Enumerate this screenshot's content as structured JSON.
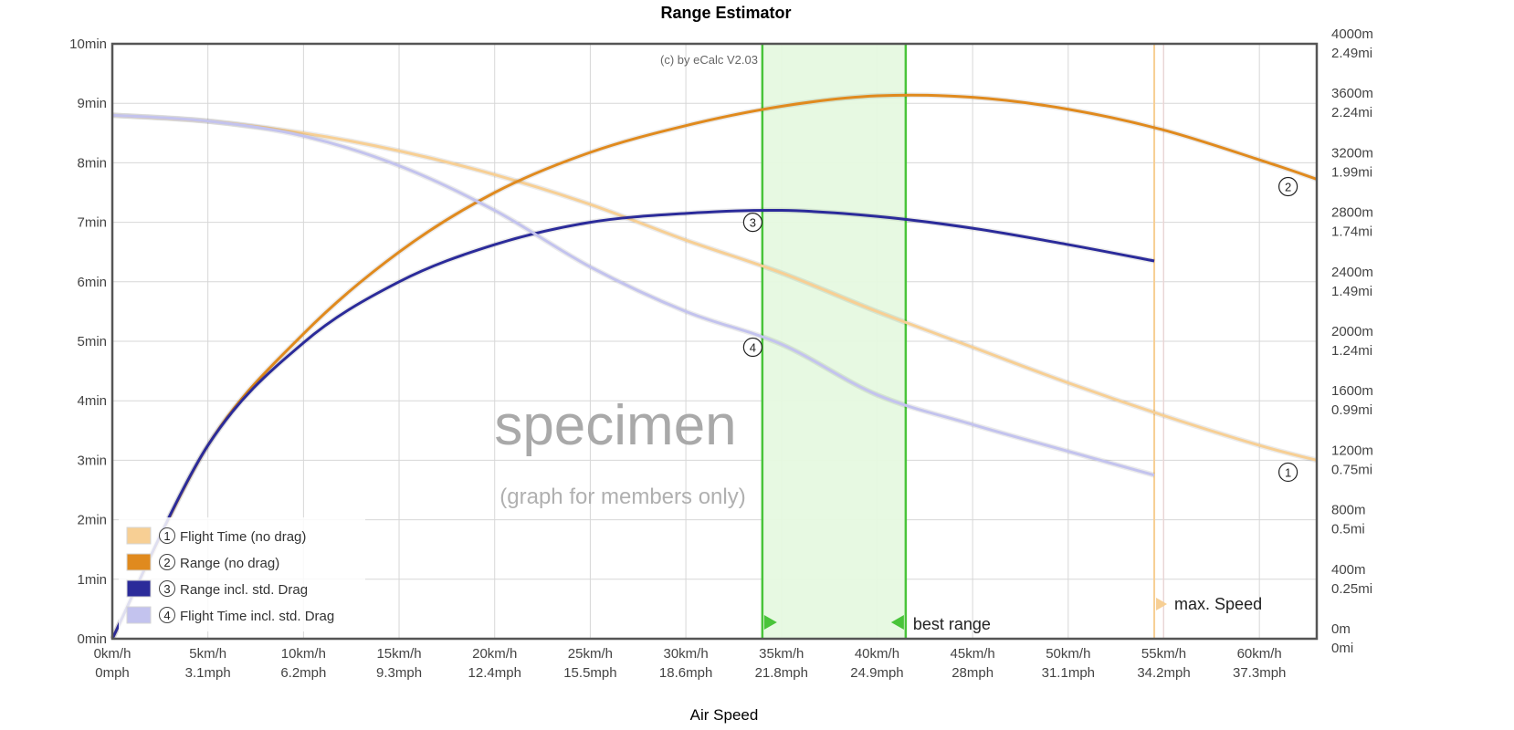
{
  "chart_data": {
    "type": "line",
    "title": "Range Estimator",
    "xlabel": "Air Speed",
    "credit": "(c) by eCalc  V2.03",
    "watermark": "specimen",
    "watermark_sub": "(graph for members only)",
    "x_ticks": [
      {
        "kmh": 0,
        "top": "0km/h",
        "bottom": "0mph"
      },
      {
        "kmh": 5,
        "top": "5km/h",
        "bottom": "3.1mph"
      },
      {
        "kmh": 10,
        "top": "10km/h",
        "bottom": "6.2mph"
      },
      {
        "kmh": 15,
        "top": "15km/h",
        "bottom": "9.3mph"
      },
      {
        "kmh": 20,
        "top": "20km/h",
        "bottom": "12.4mph"
      },
      {
        "kmh": 25,
        "top": "25km/h",
        "bottom": "15.5mph"
      },
      {
        "kmh": 30,
        "top": "30km/h",
        "bottom": "18.6mph"
      },
      {
        "kmh": 35,
        "top": "35km/h",
        "bottom": "21.8mph"
      },
      {
        "kmh": 40,
        "top": "40km/h",
        "bottom": "24.9mph"
      },
      {
        "kmh": 45,
        "top": "45km/h",
        "bottom": "28mph"
      },
      {
        "kmh": 50,
        "top": "50km/h",
        "bottom": "31.1mph"
      },
      {
        "kmh": 55,
        "top": "55km/h",
        "bottom": "34.2mph"
      },
      {
        "kmh": 60,
        "top": "60km/h",
        "bottom": "37.3mph"
      }
    ],
    "xlim": [
      0,
      63
    ],
    "y_left": {
      "ylim": [
        0,
        10
      ],
      "ticks": [
        "0min",
        "1min",
        "2min",
        "3min",
        "4min",
        "5min",
        "6min",
        "7min",
        "8min",
        "9min",
        "10min"
      ]
    },
    "y_right": {
      "ylim": [
        0,
        4000
      ],
      "ticks": [
        {
          "v": 0,
          "a": "0m",
          "b": "0mi"
        },
        {
          "v": 400,
          "a": "400m",
          "b": "0.25mi"
        },
        {
          "v": 800,
          "a": "800m",
          "b": "0.5mi"
        },
        {
          "v": 1200,
          "a": "1200m",
          "b": "0.75mi"
        },
        {
          "v": 1600,
          "a": "1600m",
          "b": "0.99mi"
        },
        {
          "v": 2000,
          "a": "2000m",
          "b": "1.24mi"
        },
        {
          "v": 2400,
          "a": "2400m",
          "b": "1.49mi"
        },
        {
          "v": 2800,
          "a": "2800m",
          "b": "1.74mi"
        },
        {
          "v": 3200,
          "a": "3200m",
          "b": "1.99mi"
        },
        {
          "v": 3600,
          "a": "3600m",
          "b": "2.24mi"
        },
        {
          "v": 4000,
          "a": "4000m",
          "b": "2.49mi"
        }
      ]
    },
    "series": [
      {
        "marker": "1",
        "name": "Flight Time (no drag)",
        "axis": "left",
        "color": "#f7cf94",
        "x": [
          0,
          5,
          10,
          15,
          20,
          25,
          30,
          35,
          40,
          45,
          50,
          55,
          60,
          63
        ],
        "y": [
          8.8,
          8.7,
          8.5,
          8.2,
          7.8,
          7.3,
          6.7,
          6.15,
          5.5,
          4.9,
          4.3,
          3.75,
          3.25,
          3.0
        ]
      },
      {
        "marker": "2",
        "name": "Range (no drag)",
        "axis": "left_range",
        "color": "#e08a1e",
        "x": [
          0,
          5,
          10,
          15,
          20,
          25,
          30,
          35,
          40,
          45,
          50,
          55,
          60,
          63
        ],
        "y": [
          0,
          1300,
          2050,
          2600,
          3000,
          3270,
          3450,
          3580,
          3650,
          3640,
          3560,
          3420,
          3220,
          3090
        ]
      },
      {
        "marker": "3",
        "name": "Range incl. std. Drag",
        "axis": "right",
        "color": "#2b2b9a",
        "x": [
          0,
          5,
          10,
          15,
          20,
          25,
          30,
          35,
          40,
          45,
          50,
          54.5
        ],
        "y": [
          0,
          1300,
          1990,
          2400,
          2650,
          2800,
          2860,
          2880,
          2840,
          2760,
          2650,
          2540
        ]
      },
      {
        "marker": "4",
        "name": "Flight Time incl. std. Drag",
        "axis": "left",
        "color": "#c3c3ee",
        "x": [
          0,
          5,
          10,
          15,
          20,
          25,
          30,
          35,
          40,
          45,
          50,
          54.5
        ],
        "y": [
          8.8,
          8.7,
          8.45,
          7.95,
          7.2,
          6.25,
          5.5,
          4.95,
          4.1,
          3.6,
          3.15,
          2.75
        ]
      }
    ],
    "best_range": {
      "label": "best range",
      "from_kmh": 34,
      "to_kmh": 41.5,
      "color": "#49c43a"
    },
    "max_speed": {
      "label": "max. Speed",
      "kmh": 54.5,
      "color": "#f7cf94"
    },
    "legend_position": "bottom-left",
    "grid": true
  }
}
